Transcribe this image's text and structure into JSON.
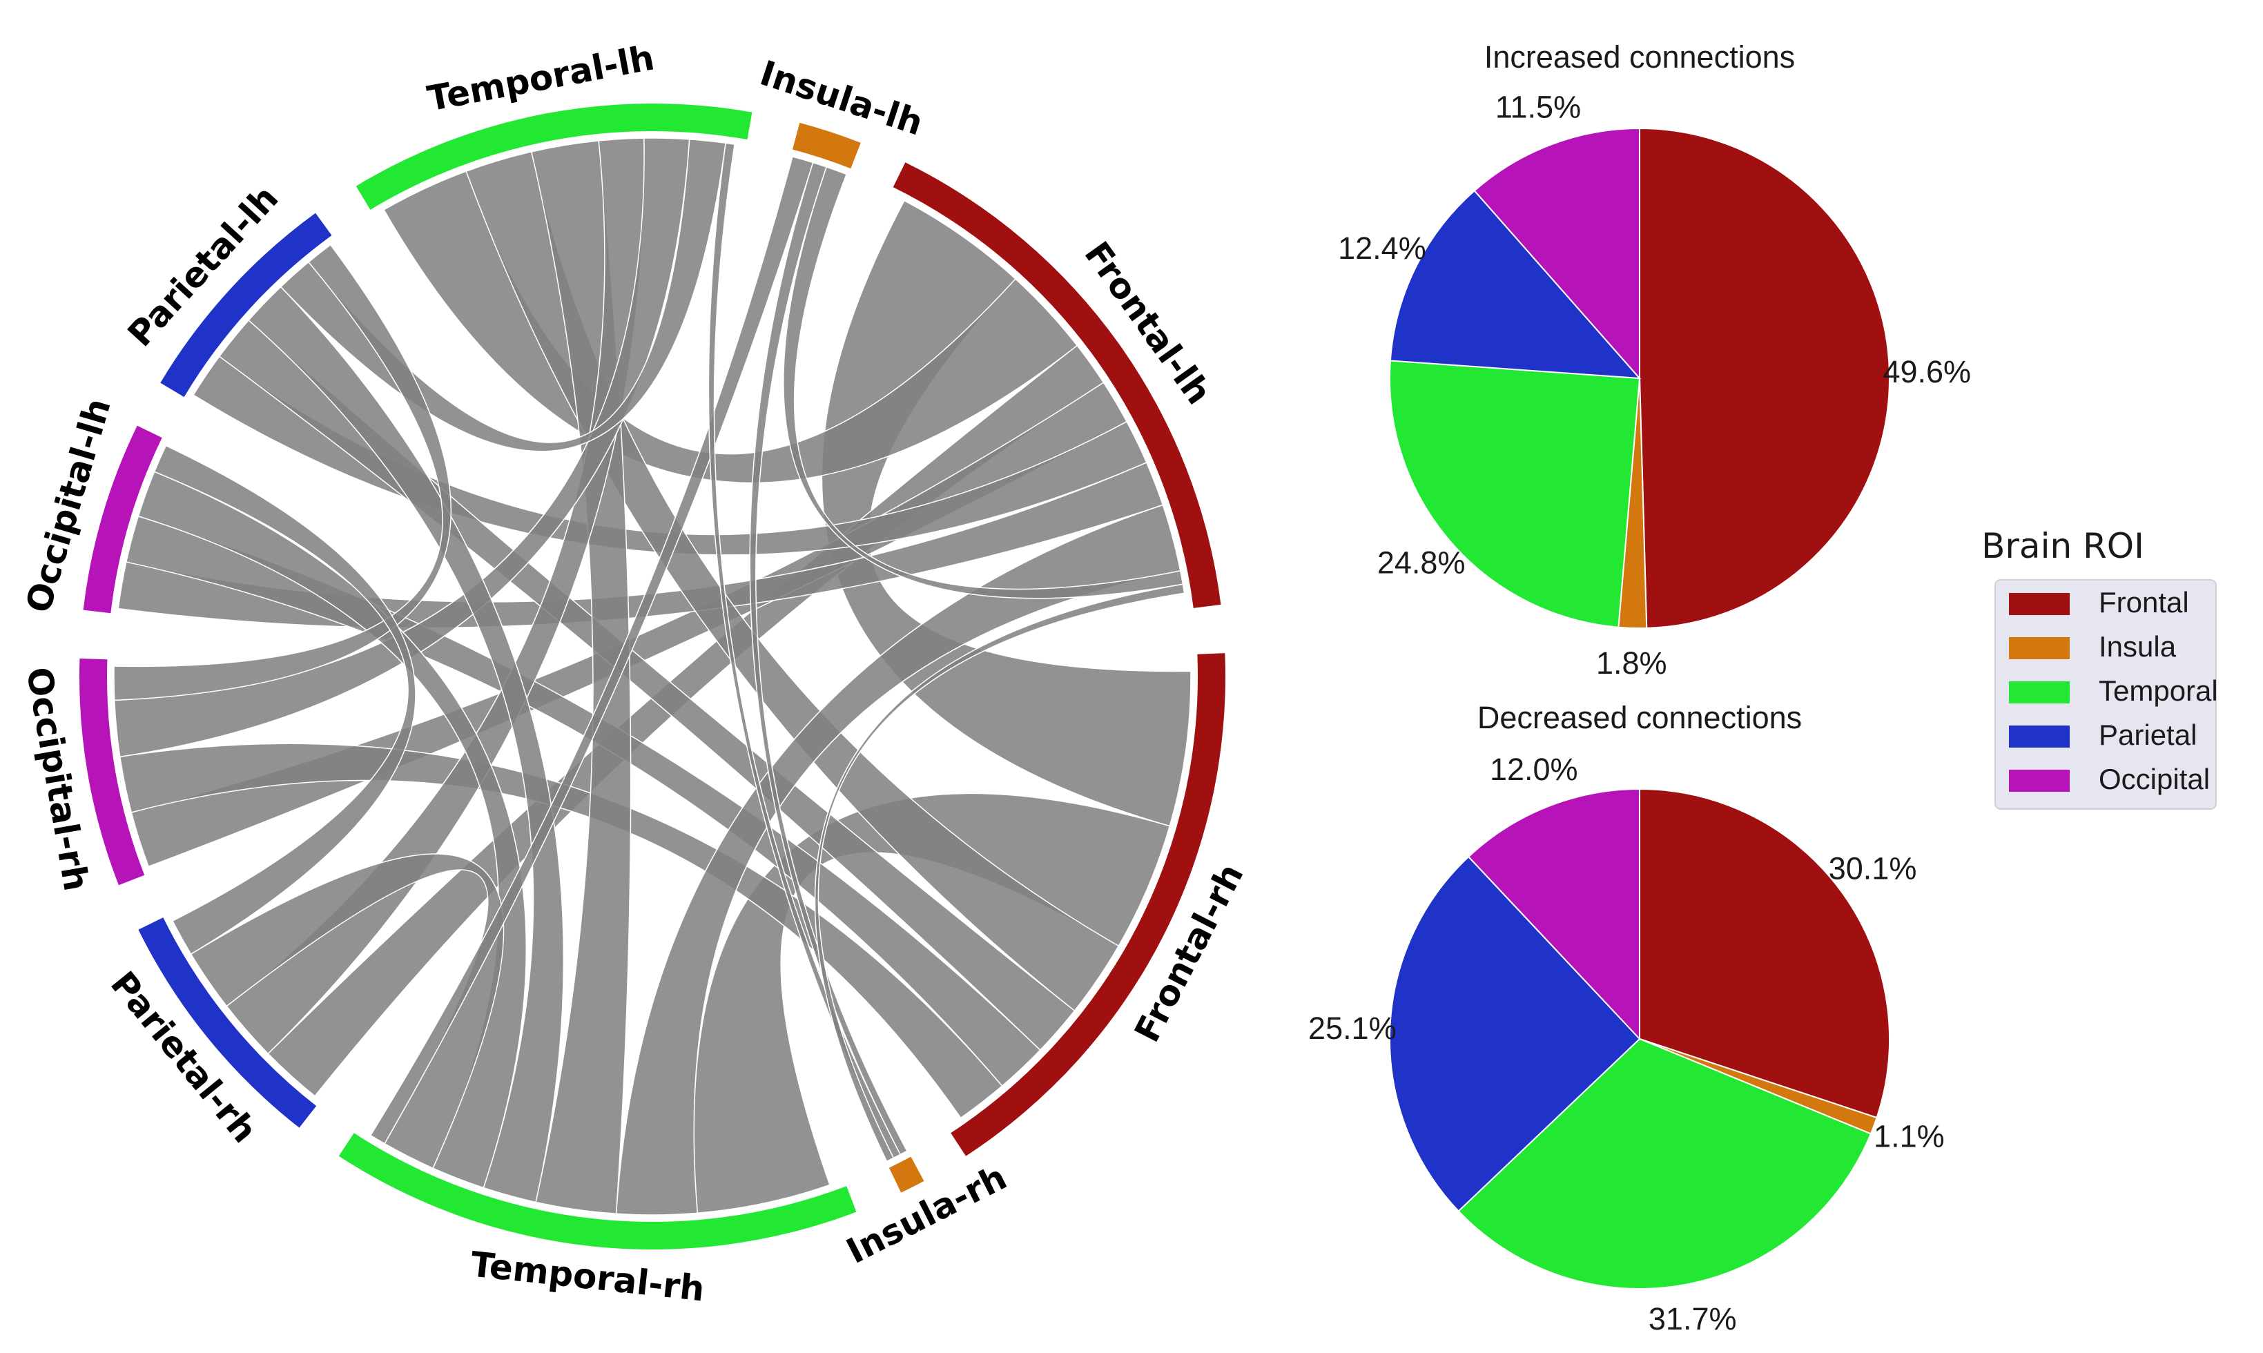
{
  "chart_data": [
    {
      "type": "chord",
      "title": "",
      "segments": [
        {
          "name": "Frontal-rh",
          "region": "Frontal",
          "size": 23
        },
        {
          "name": "Insula-rh",
          "region": "Insula",
          "size": 1
        },
        {
          "name": "Temporal-rh",
          "region": "Temporal",
          "size": 21
        },
        {
          "name": "Parietal-rh",
          "region": "Parietal",
          "size": 10
        },
        {
          "name": "Occipital-rh",
          "region": "Occipital",
          "size": 9
        },
        {
          "name": "Occipital-lh",
          "region": "Occipital",
          "size": 7.5
        },
        {
          "name": "Parietal-lh",
          "region": "Parietal",
          "size": 9
        },
        {
          "name": "Temporal-lh",
          "region": "Temporal",
          "size": 16
        },
        {
          "name": "Insula-lh",
          "region": "Insula",
          "size": 2.5
        },
        {
          "name": "Frontal-lh",
          "region": "Frontal",
          "size": 22
        }
      ],
      "ribbons": [
        {
          "from": "Frontal-lh",
          "to": "Frontal-rh",
          "weight": 3
        },
        {
          "from": "Frontal-rh",
          "to": "Temporal-rh",
          "weight": 2.5
        },
        {
          "from": "Frontal-lh",
          "to": "Temporal-lh",
          "weight": 2
        },
        {
          "from": "Frontal-lh",
          "to": "Parietal-rh",
          "weight": 1
        },
        {
          "from": "Frontal-lh",
          "to": "Occipital-rh",
          "weight": 1
        },
        {
          "from": "Frontal-lh",
          "to": "Parietal-lh",
          "weight": 1
        },
        {
          "from": "Frontal-lh",
          "to": "Occipital-lh",
          "weight": 1
        },
        {
          "from": "Frontal-rh",
          "to": "Temporal-lh",
          "weight": 1.5
        },
        {
          "from": "Frontal-rh",
          "to": "Parietal-lh",
          "weight": 1
        },
        {
          "from": "Frontal-rh",
          "to": "Occipital-lh",
          "weight": 1
        },
        {
          "from": "Frontal-rh",
          "to": "Occipital-rh",
          "weight": 1
        },
        {
          "from": "Frontal-lh",
          "to": "Temporal-rh",
          "weight": 1.5
        },
        {
          "from": "Temporal-lh",
          "to": "Temporal-rh",
          "weight": 1.5
        },
        {
          "from": "Temporal-lh",
          "to": "Parietal-rh",
          "weight": 1
        },
        {
          "from": "Temporal-lh",
          "to": "Occipital-rh",
          "weight": 1
        },
        {
          "from": "Temporal-rh",
          "to": "Parietal-lh",
          "weight": 1
        },
        {
          "from": "Temporal-rh",
          "to": "Occipital-lh",
          "weight": 1
        },
        {
          "from": "Temporal-rh",
          "to": "Parietal-rh",
          "weight": 1
        },
        {
          "from": "Temporal-lh",
          "to": "Parietal-lh",
          "weight": 0.8
        },
        {
          "from": "Parietal-lh",
          "to": "Occipital-rh",
          "weight": 0.6
        },
        {
          "from": "Occipital-lh",
          "to": "Parietal-rh",
          "weight": 0.6
        },
        {
          "from": "Insula-lh",
          "to": "Temporal-rh",
          "weight": 0.3
        },
        {
          "from": "Insula-lh",
          "to": "Insula-rh",
          "weight": 0.2
        },
        {
          "from": "Insula-lh",
          "to": "Frontal-lh",
          "weight": 0.3
        },
        {
          "from": "Insula-rh",
          "to": "Temporal-lh",
          "weight": 0.2
        },
        {
          "from": "Insula-rh",
          "to": "Frontal-lh",
          "weight": 0.2
        }
      ]
    },
    {
      "type": "pie",
      "title": "Increased connections",
      "categories": [
        "Frontal",
        "Insula",
        "Temporal",
        "Parietal",
        "Occipital"
      ],
      "values": [
        49.6,
        1.8,
        24.8,
        12.4,
        11.5
      ],
      "labels": [
        "49.6%",
        "1.8%",
        "24.8%",
        "12.4%",
        "11.5%"
      ]
    },
    {
      "type": "pie",
      "title": "Decreased connections",
      "categories": [
        "Frontal",
        "Insula",
        "Temporal",
        "Parietal",
        "Occipital"
      ],
      "values": [
        30.1,
        1.1,
        31.7,
        25.1,
        12.0
      ],
      "labels": [
        "30.1%",
        "1.1%",
        "31.7%",
        "25.1%",
        "12.0%"
      ]
    }
  ],
  "legend": {
    "title": "Brain ROI",
    "entries": [
      {
        "label": "Frontal",
        "color": "#a11010"
      },
      {
        "label": "Insula",
        "color": "#d2780e"
      },
      {
        "label": "Temporal",
        "color": "#22e834"
      },
      {
        "label": "Parietal",
        "color": "#1f33c8"
      },
      {
        "label": "Occipital",
        "color": "#b614b8"
      }
    ]
  },
  "colors": {
    "Frontal": "#a11010",
    "Insula": "#d2780e",
    "Temporal": "#22e834",
    "Parietal": "#1f33c8",
    "Occipital": "#b614b8",
    "ribbon": "#808080"
  }
}
